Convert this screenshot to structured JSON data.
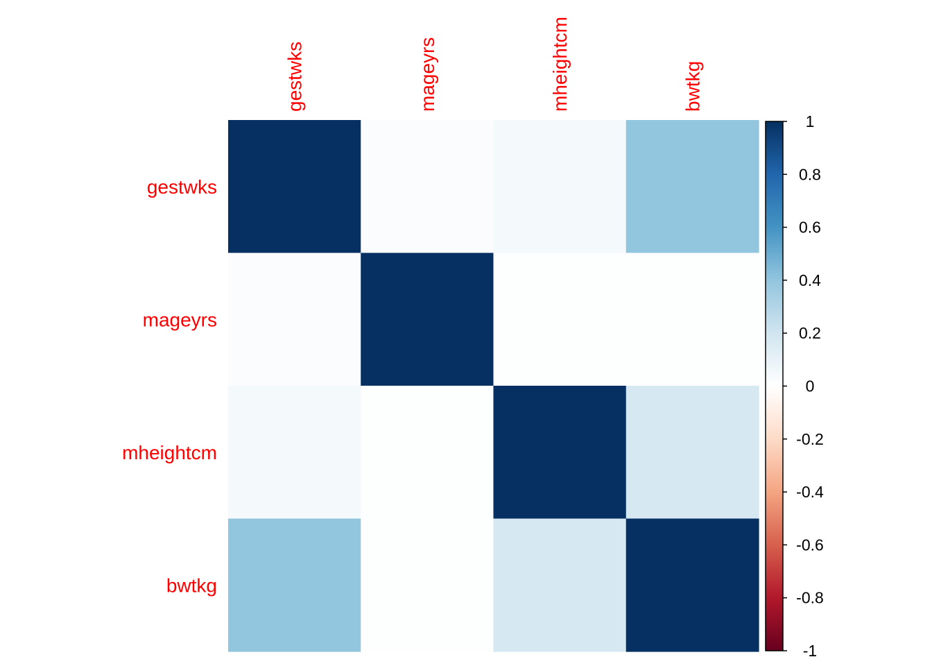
{
  "chart_data": {
    "type": "heatmap",
    "variables": [
      "gestwks",
      "mageyrs",
      "mheightcm",
      "bwtkg"
    ],
    "matrix": [
      [
        1.0,
        0.02,
        0.05,
        0.4
      ],
      [
        0.02,
        1.0,
        0.01,
        0.01
      ],
      [
        0.05,
        0.01,
        1.0,
        0.18
      ],
      [
        0.4,
        0.01,
        0.18,
        1.0
      ]
    ],
    "color_scale": {
      "min": -1,
      "max": 1,
      "ticks": [
        1,
        0.8,
        0.6,
        0.4,
        0.2,
        0,
        -0.2,
        -0.4,
        -0.6,
        -0.8,
        -1
      ],
      "stops": [
        {
          "value": -1.0,
          "color": "#67001F"
        },
        {
          "value": -0.8,
          "color": "#B2182B"
        },
        {
          "value": -0.6,
          "color": "#D6604D"
        },
        {
          "value": -0.4,
          "color": "#F4A582"
        },
        {
          "value": -0.2,
          "color": "#FDDBC7"
        },
        {
          "value": 0.0,
          "color": "#FFFFFF"
        },
        {
          "value": 0.2,
          "color": "#D1E5F0"
        },
        {
          "value": 0.4,
          "color": "#92C5DE"
        },
        {
          "value": 0.6,
          "color": "#4393C3"
        },
        {
          "value": 0.8,
          "color": "#2166AC"
        },
        {
          "value": 1.0,
          "color": "#053061"
        }
      ]
    },
    "label_color": "#FF0000",
    "tick_label_color": "#000000",
    "legend_placement": "right",
    "grid": false
  }
}
